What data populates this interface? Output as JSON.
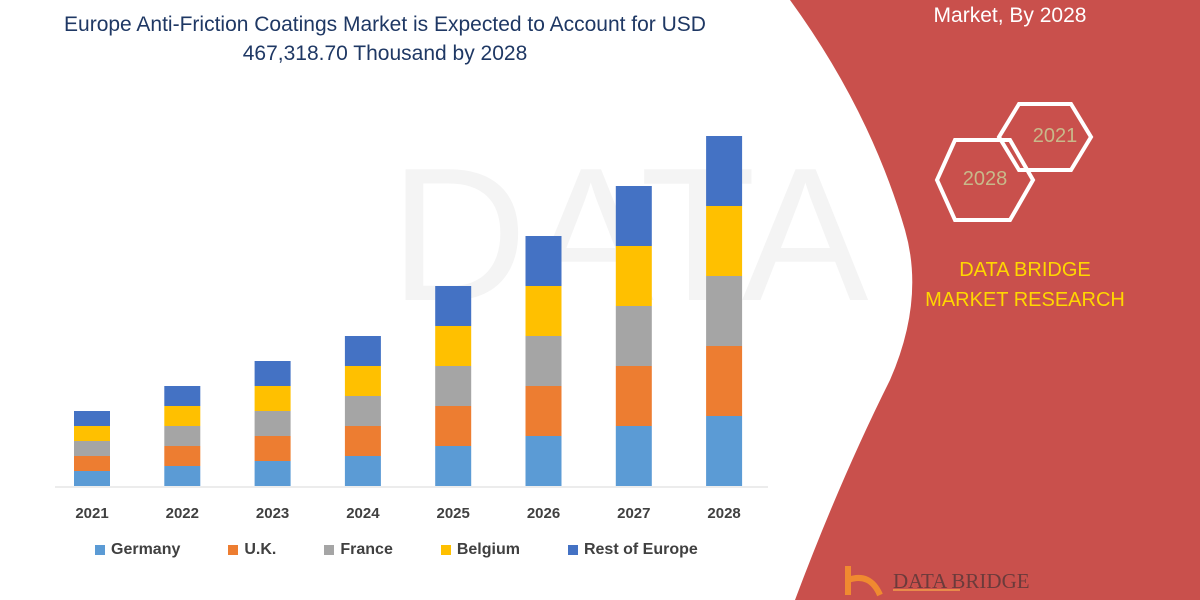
{
  "header": {
    "title": "Europe Anti-Friction Coatings Market is Expected to Account for USD 467,318.70 Thousand by 2028"
  },
  "side_panel": {
    "title": "Market, By 2028",
    "hex_years": [
      "2028",
      "2021"
    ],
    "brand": "DATA BRIDGE MARKET RESEARCH",
    "logo_text": "DATA BRIDGE",
    "color": "#c9504c"
  },
  "chart_data": {
    "type": "bar",
    "stacked": true,
    "title": "",
    "xlabel": "",
    "ylabel": "",
    "categories": [
      "2021",
      "2022",
      "2023",
      "2024",
      "2025",
      "2026",
      "2027",
      "2028"
    ],
    "series": [
      {
        "name": "Germany",
        "color": "#5b9bd5",
        "values": [
          15,
          20,
          25,
          30,
          40,
          50,
          60,
          70
        ]
      },
      {
        "name": "U.K.",
        "color": "#ed7d31",
        "values": [
          15,
          20,
          25,
          30,
          40,
          50,
          60,
          70
        ]
      },
      {
        "name": "France",
        "color": "#a5a5a5",
        "values": [
          15,
          20,
          25,
          30,
          40,
          50,
          60,
          70
        ]
      },
      {
        "name": "Belgium",
        "color": "#ffc000",
        "values": [
          15,
          20,
          25,
          30,
          40,
          50,
          60,
          70
        ]
      },
      {
        "name": "Rest of Europe",
        "color": "#4472c4",
        "values": [
          15,
          20,
          25,
          30,
          40,
          50,
          60,
          70
        ]
      }
    ],
    "y_axis_shown": false,
    "grid": false,
    "legend_position": "bottom"
  }
}
